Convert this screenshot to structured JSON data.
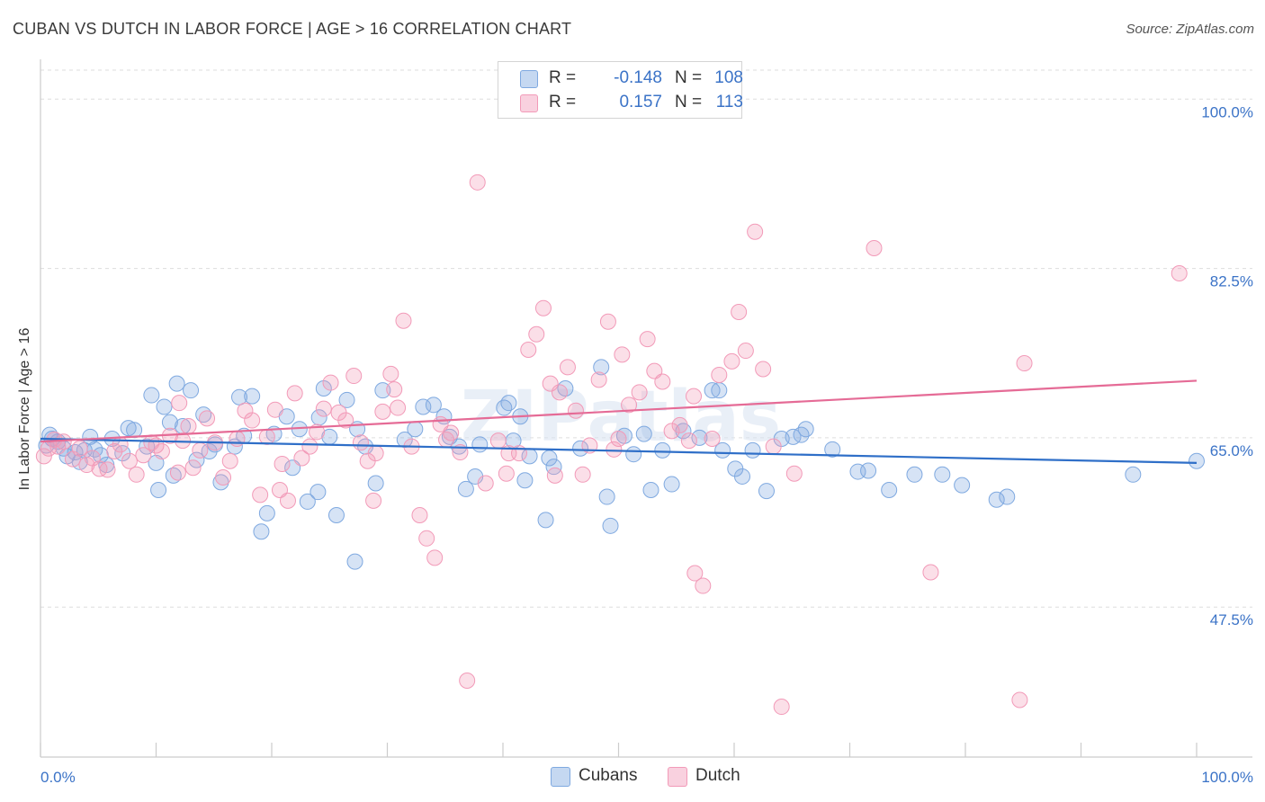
{
  "title": "CUBAN VS DUTCH IN LABOR FORCE | AGE > 16 CORRELATION CHART",
  "source": "Source: ZipAtlas.com",
  "watermark": "ZIPatlas",
  "legend": {
    "rows": [
      {
        "r_label": "R =",
        "r_value": "-0.148",
        "n_label": "N =",
        "n_value": "108",
        "color": "#7fa9e0"
      },
      {
        "r_label": "R =",
        "r_value": "0.157",
        "n_label": "N =",
        "n_value": "113",
        "color": "#f29ab8"
      }
    ]
  },
  "bottom_legend": [
    {
      "label": "Cubans",
      "color": "#7fa9e0"
    },
    {
      "label": "Dutch",
      "color": "#f29ab8"
    }
  ],
  "chart_data": {
    "type": "scatter",
    "title": "CUBAN VS DUTCH IN LABOR FORCE | AGE > 16 CORRELATION CHART",
    "xlabel": "",
    "ylabel": "In Labor Force | Age > 16",
    "xlim": [
      0,
      100
    ],
    "ylim": [
      32,
      103
    ],
    "x_tick_labels": [
      "0.0%",
      "100.0%"
    ],
    "y_ticks": [
      47.5,
      65.0,
      82.5,
      100.0
    ],
    "y_tick_labels": [
      "47.5%",
      "65.0%",
      "82.5%",
      "100.0%"
    ],
    "grid": true,
    "legend_position": "top-center",
    "series": [
      {
        "name": "Cubans",
        "color": "#7fa9e0",
        "line_color": "#2f6fc8",
        "trend": {
          "x": [
            0,
            100
          ],
          "y": [
            64.9,
            62.4
          ]
        },
        "points": [
          [
            0.8,
            65.3
          ],
          [
            1.5,
            64.6
          ],
          [
            2,
            63.9
          ],
          [
            2.3,
            63.1
          ],
          [
            3,
            63.5
          ],
          [
            3.4,
            62.5
          ],
          [
            3.8,
            63.7
          ],
          [
            4.3,
            65.1
          ],
          [
            4.7,
            63.8
          ],
          [
            5.2,
            63.2
          ],
          [
            5.7,
            62.2
          ],
          [
            6.2,
            64.9
          ],
          [
            7.1,
            63.4
          ],
          [
            7.6,
            66.0
          ],
          [
            8.1,
            65.8
          ],
          [
            9.2,
            64.1
          ],
          [
            9.6,
            69.4
          ],
          [
            10.0,
            62.4
          ],
          [
            10.2,
            59.6
          ],
          [
            10.7,
            68.2
          ],
          [
            11.2,
            66.6
          ],
          [
            11.5,
            61.1
          ],
          [
            11.8,
            70.6
          ],
          [
            12.3,
            66.2
          ],
          [
            13.0,
            69.9
          ],
          [
            13.5,
            62.7
          ],
          [
            14.1,
            67.4
          ],
          [
            14.6,
            63.6
          ],
          [
            15.1,
            64.3
          ],
          [
            15.6,
            60.4
          ],
          [
            16.8,
            64.1
          ],
          [
            17.2,
            69.2
          ],
          [
            17.6,
            65.2
          ],
          [
            18.3,
            69.3
          ],
          [
            19.1,
            55.3
          ],
          [
            19.6,
            57.2
          ],
          [
            20.2,
            65.4
          ],
          [
            21.3,
            67.2
          ],
          [
            21.8,
            61.9
          ],
          [
            22.4,
            65.9
          ],
          [
            23.1,
            58.4
          ],
          [
            24.1,
            67.1
          ],
          [
            24.5,
            70.1
          ],
          [
            25.0,
            65.1
          ],
          [
            25.6,
            57.0
          ],
          [
            26.5,
            68.9
          ],
          [
            27.2,
            52.2
          ],
          [
            28.1,
            64.1
          ],
          [
            29.0,
            60.3
          ],
          [
            29.6,
            69.9
          ],
          [
            31.5,
            64.8
          ],
          [
            32.4,
            65.9
          ],
          [
            33.1,
            68.2
          ],
          [
            34.0,
            68.4
          ],
          [
            34.9,
            67.2
          ],
          [
            35.4,
            65.1
          ],
          [
            36.2,
            64.1
          ],
          [
            36.8,
            59.7
          ],
          [
            37.6,
            61.0
          ],
          [
            38.0,
            64.3
          ],
          [
            40.1,
            68.1
          ],
          [
            40.9,
            64.7
          ],
          [
            41.5,
            67.2
          ],
          [
            41.9,
            60.6
          ],
          [
            42.3,
            63.1
          ],
          [
            43.7,
            56.5
          ],
          [
            44.0,
            62.9
          ],
          [
            44.4,
            62.0
          ],
          [
            45.4,
            70.1
          ],
          [
            46.7,
            63.9
          ],
          [
            48.5,
            72.3
          ],
          [
            49.0,
            58.9
          ],
          [
            49.3,
            55.9
          ],
          [
            50.5,
            65.2
          ],
          [
            51.3,
            63.3
          ],
          [
            52.2,
            65.4
          ],
          [
            52.8,
            59.6
          ],
          [
            53.8,
            63.7
          ],
          [
            54.6,
            60.2
          ],
          [
            55.6,
            65.7
          ],
          [
            57.0,
            65.0
          ],
          [
            58.1,
            69.9
          ],
          [
            58.7,
            69.9
          ],
          [
            59.0,
            63.7
          ],
          [
            60.1,
            61.8
          ],
          [
            60.7,
            61.0
          ],
          [
            61.6,
            63.7
          ],
          [
            62.8,
            59.5
          ],
          [
            64.1,
            64.9
          ],
          [
            65.1,
            65.1
          ],
          [
            66.2,
            65.9
          ],
          [
            68.5,
            63.8
          ],
          [
            70.7,
            61.5
          ],
          [
            71.6,
            61.6
          ],
          [
            73.4,
            59.6
          ],
          [
            75.6,
            61.2
          ],
          [
            78.0,
            61.2
          ],
          [
            79.7,
            60.1
          ],
          [
            82.7,
            58.6
          ],
          [
            83.6,
            58.9
          ],
          [
            94.5,
            61.2
          ],
          [
            100.0,
            62.6
          ],
          [
            0.5,
            64.2
          ],
          [
            1.0,
            64.9
          ],
          [
            24.0,
            59.4
          ],
          [
            27.4,
            65.9
          ],
          [
            40.5,
            68.6
          ],
          [
            65.8,
            65.3
          ]
        ]
      },
      {
        "name": "Dutch",
        "color": "#f29ab8",
        "line_color": "#e56b96",
        "trend": {
          "x": [
            0,
            100
          ],
          "y": [
            64.6,
            70.9
          ]
        },
        "points": [
          [
            0.7,
            63.9
          ],
          [
            1.2,
            64.8
          ],
          [
            2.0,
            64.6
          ],
          [
            2.8,
            62.8
          ],
          [
            3.4,
            63.9
          ],
          [
            4.0,
            62.2
          ],
          [
            4.5,
            62.9
          ],
          [
            5.1,
            61.8
          ],
          [
            5.8,
            61.7
          ],
          [
            6.4,
            63.6
          ],
          [
            6.9,
            64.3
          ],
          [
            7.7,
            62.6
          ],
          [
            8.3,
            61.2
          ],
          [
            8.9,
            63.2
          ],
          [
            9.6,
            64.5
          ],
          [
            10.0,
            64.2
          ],
          [
            10.5,
            63.6
          ],
          [
            11.2,
            65.2
          ],
          [
            11.9,
            61.4
          ],
          [
            12.3,
            64.7
          ],
          [
            12.8,
            66.2
          ],
          [
            13.2,
            61.9
          ],
          [
            13.8,
            63.7
          ],
          [
            14.4,
            67.0
          ],
          [
            15.1,
            64.5
          ],
          [
            15.8,
            60.9
          ],
          [
            16.4,
            62.6
          ],
          [
            17.0,
            64.9
          ],
          [
            17.7,
            67.8
          ],
          [
            18.3,
            66.8
          ],
          [
            19.0,
            59.1
          ],
          [
            19.6,
            65.1
          ],
          [
            20.3,
            67.9
          ],
          [
            20.9,
            62.3
          ],
          [
            21.4,
            58.5
          ],
          [
            22.0,
            69.6
          ],
          [
            22.6,
            62.9
          ],
          [
            23.3,
            64.1
          ],
          [
            23.9,
            65.6
          ],
          [
            24.5,
            68.0
          ],
          [
            25.1,
            70.7
          ],
          [
            25.8,
            67.6
          ],
          [
            26.4,
            66.8
          ],
          [
            27.1,
            71.4
          ],
          [
            27.7,
            64.5
          ],
          [
            28.3,
            62.6
          ],
          [
            29.0,
            63.4
          ],
          [
            29.6,
            67.7
          ],
          [
            30.3,
            71.6
          ],
          [
            30.9,
            68.1
          ],
          [
            31.4,
            77.1
          ],
          [
            32.1,
            64.1
          ],
          [
            32.8,
            57.0
          ],
          [
            33.4,
            54.6
          ],
          [
            34.1,
            52.6
          ],
          [
            34.6,
            66.4
          ],
          [
            35.1,
            64.8
          ],
          [
            35.5,
            65.5
          ],
          [
            36.3,
            63.5
          ],
          [
            36.9,
            39.9
          ],
          [
            37.8,
            91.4
          ],
          [
            38.5,
            60.3
          ],
          [
            39.6,
            64.7
          ],
          [
            40.3,
            61.3
          ],
          [
            41.4,
            63.4
          ],
          [
            42.2,
            74.1
          ],
          [
            42.9,
            75.7
          ],
          [
            43.5,
            78.4
          ],
          [
            44.1,
            70.6
          ],
          [
            44.9,
            69.7
          ],
          [
            45.6,
            72.3
          ],
          [
            46.3,
            67.8
          ],
          [
            46.9,
            61.2
          ],
          [
            47.5,
            64.2
          ],
          [
            48.3,
            71.0
          ],
          [
            49.1,
            77.0
          ],
          [
            49.6,
            63.8
          ],
          [
            50.3,
            73.6
          ],
          [
            50.9,
            68.4
          ],
          [
            51.8,
            69.7
          ],
          [
            52.5,
            75.2
          ],
          [
            53.1,
            71.9
          ],
          [
            53.8,
            70.8
          ],
          [
            54.6,
            65.7
          ],
          [
            55.3,
            66.3
          ],
          [
            56.1,
            64.7
          ],
          [
            56.6,
            51.0
          ],
          [
            57.3,
            49.7
          ],
          [
            58.1,
            64.9
          ],
          [
            58.7,
            71.5
          ],
          [
            59.8,
            72.9
          ],
          [
            60.4,
            78.0
          ],
          [
            61.0,
            74.0
          ],
          [
            61.8,
            86.3
          ],
          [
            62.5,
            72.1
          ],
          [
            63.4,
            64.1
          ],
          [
            64.1,
            37.2
          ],
          [
            65.2,
            61.3
          ],
          [
            72.1,
            84.6
          ],
          [
            85.1,
            72.7
          ],
          [
            0.3,
            63.1
          ],
          [
            1.5,
            64.1
          ],
          [
            12.0,
            68.6
          ],
          [
            20.7,
            59.6
          ],
          [
            28.8,
            58.5
          ],
          [
            44.5,
            61.1
          ],
          [
            77.0,
            51.1
          ],
          [
            84.7,
            37.9
          ],
          [
            98.5,
            82.0
          ],
          [
            56.5,
            69.3
          ],
          [
            50.0,
            64.9
          ],
          [
            40.5,
            63.4
          ],
          [
            30.6,
            70.0
          ]
        ]
      }
    ]
  }
}
